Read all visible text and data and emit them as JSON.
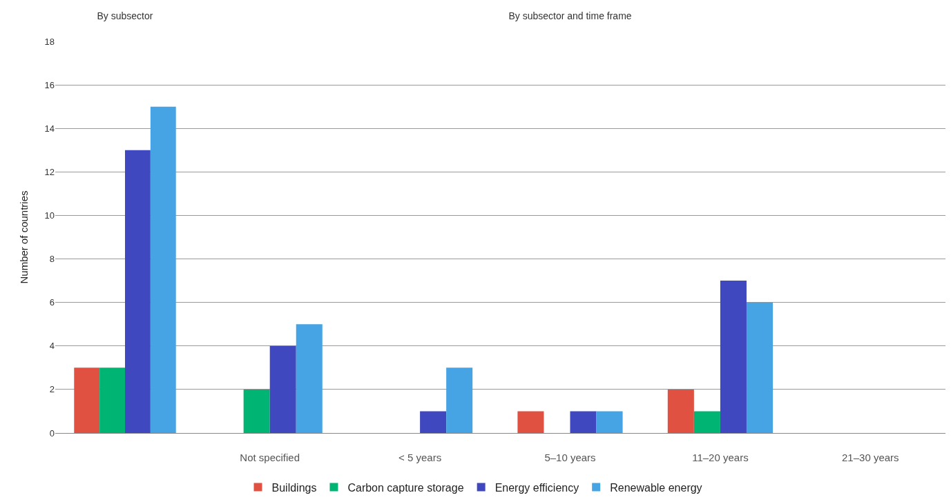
{
  "chart_data": [
    {
      "type": "bar",
      "title": "By subsector",
      "ylabel": "Number of countries",
      "categories": [
        null
      ],
      "series": [
        {
          "color": "#e05141",
          "values": [
            3
          ]
        },
        {
          "color": "#00b574",
          "values": [
            3
          ]
        },
        {
          "color": "#3f48bf",
          "values": [
            13
          ]
        },
        {
          "color": "#46a4e4",
          "values": [
            15
          ]
        }
      ],
      "ylim": [
        0,
        18
      ],
      "yticks": [
        0,
        2,
        4,
        6,
        8,
        10,
        12,
        14,
        16,
        18
      ],
      "grid": "y",
      "tick_labels": "y"
    },
    {
      "type": "bar",
      "title": "By subsector and time frame",
      "categories": [
        "Not specified",
        "< 5 years",
        "5–10 years",
        "11–20 years",
        "21–30 years"
      ],
      "series": [
        {
          "name": "Buildings",
          "color": "#e05141",
          "values": [
            0,
            0,
            1,
            2,
            0
          ]
        },
        {
          "name": "Carbon capture storage",
          "color": "#00b574",
          "values": [
            2,
            0,
            0,
            1,
            0
          ]
        },
        {
          "name": "Energy efficiency",
          "color": "#3f48bf",
          "values": [
            4,
            1,
            1,
            7,
            0
          ]
        },
        {
          "name": "Renewable energy",
          "color": "#46a4e4",
          "values": [
            5,
            3,
            1,
            6,
            0
          ]
        }
      ],
      "ylim": [
        0,
        18
      ],
      "yticks": [
        0,
        2,
        4,
        6,
        8,
        10,
        12,
        14,
        16,
        18
      ],
      "grid": "y",
      "legend": "bottom",
      "tick_labels": "x"
    }
  ]
}
